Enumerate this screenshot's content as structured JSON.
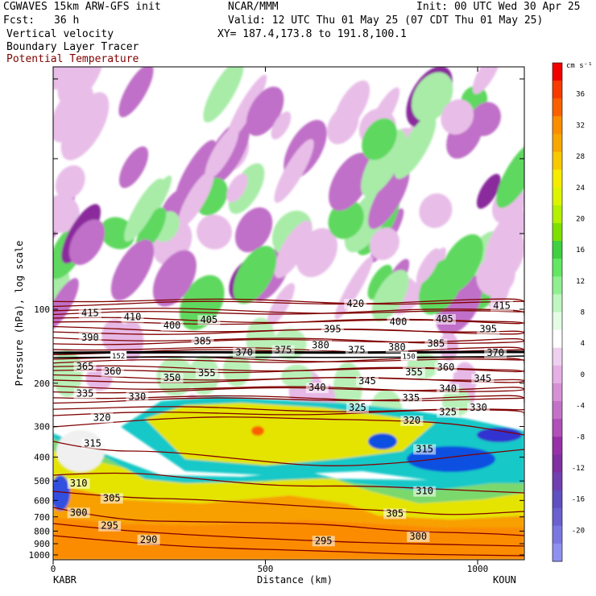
{
  "header": {
    "line1_left": "CGWAVES 15km ARW-GFS init",
    "line1_center": "NCAR/MMM",
    "line1_right": "Init: 00 UTC Wed 30 Apr 25",
    "fcst_label": "Fcst:",
    "fcst_value": "36 h",
    "valid": "Valid: 12 UTC Thu 01 May 25 (07 CDT Thu 01 May 25)",
    "field1": "Vertical velocity",
    "field2": "Boundary Layer Tracer",
    "field3": "Potential Temperature",
    "xy": "XY= 187.4,173.8 to 191.8,100.1"
  },
  "chart_data": {
    "type": "heatmap",
    "xlabel": "Distance (km)",
    "ylabel": "Pressure (hPa), log scale",
    "xlim": [
      0,
      1110
    ],
    "x_ticks": [
      0,
      500,
      1000
    ],
    "y_ticks": [
      100,
      200,
      300,
      400,
      500,
      600,
      700,
      800,
      900,
      1000
    ],
    "y_log_scale": true,
    "left_station": "KABR",
    "right_station": "KOUN",
    "colorbar": {
      "unit": "cm s⁻¹",
      "labels": [
        36,
        32,
        28,
        24,
        20,
        16,
        12,
        8,
        4,
        0,
        -4,
        -8,
        -12,
        -16,
        -20
      ],
      "colors": [
        "#f20000",
        "#f83a00",
        "#fb6000",
        "#fb8e00",
        "#f8a600",
        "#f8c800",
        "#f6ec00",
        "#dcf400",
        "#b4f000",
        "#7ee000",
        "#40d040",
        "#62e862",
        "#90f090",
        "#c0f6c0",
        "#e4fbe4",
        "#ffffff",
        "#f0d0f0",
        "#e6b0e6",
        "#d690d6",
        "#c472c8",
        "#b050b8",
        "#9830a8",
        "#8030a0",
        "#7040b0",
        "#6050c0",
        "#6a60d0",
        "#7a78e0",
        "#9090f0"
      ]
    },
    "theta_labels": [
      {
        "x": 87,
        "p": 106,
        "v": "415"
      },
      {
        "x": 187,
        "p": 110,
        "v": "410"
      },
      {
        "x": 280,
        "p": 119,
        "v": "400"
      },
      {
        "x": 367,
        "p": 113,
        "v": "405"
      },
      {
        "x": 712,
        "p": 97,
        "v": "420"
      },
      {
        "x": 658,
        "p": 123,
        "v": "395"
      },
      {
        "x": 813,
        "p": 115,
        "v": "400"
      },
      {
        "x": 922,
        "p": 112,
        "v": "405"
      },
      {
        "x": 1025,
        "p": 123,
        "v": "395"
      },
      {
        "x": 1057,
        "p": 99,
        "v": "415"
      },
      {
        "x": 87,
        "p": 133,
        "v": "390"
      },
      {
        "x": 352,
        "p": 138,
        "v": "385"
      },
      {
        "x": 450,
        "p": 153,
        "v": "370"
      },
      {
        "x": 542,
        "p": 150,
        "v": "375"
      },
      {
        "x": 630,
        "p": 143,
        "v": "380"
      },
      {
        "x": 715,
        "p": 150,
        "v": "375"
      },
      {
        "x": 810,
        "p": 146,
        "v": "380"
      },
      {
        "x": 902,
        "p": 141,
        "v": "385"
      },
      {
        "x": 1042,
        "p": 154,
        "v": "370"
      },
      {
        "x": 75,
        "p": 175,
        "v": "365"
      },
      {
        "x": 140,
        "p": 183,
        "v": "360"
      },
      {
        "x": 280,
        "p": 194,
        "v": "350"
      },
      {
        "x": 362,
        "p": 186,
        "v": "355"
      },
      {
        "x": 622,
        "p": 213,
        "v": "340"
      },
      {
        "x": 740,
        "p": 200,
        "v": "345"
      },
      {
        "x": 850,
        "p": 184,
        "v": "355"
      },
      {
        "x": 925,
        "p": 176,
        "v": "360"
      },
      {
        "x": 1012,
        "p": 196,
        "v": "345"
      },
      {
        "x": 930,
        "p": 215,
        "v": "340"
      },
      {
        "x": 75,
        "p": 225,
        "v": "335"
      },
      {
        "x": 198,
        "p": 232,
        "v": "330"
      },
      {
        "x": 843,
        "p": 235,
        "v": "335"
      },
      {
        "x": 1002,
        "p": 257,
        "v": "330"
      },
      {
        "x": 115,
        "p": 282,
        "v": "320"
      },
      {
        "x": 717,
        "p": 257,
        "v": "325"
      },
      {
        "x": 845,
        "p": 290,
        "v": "320"
      },
      {
        "x": 930,
        "p": 268,
        "v": "325"
      },
      {
        "x": 93,
        "p": 360,
        "v": "315"
      },
      {
        "x": 875,
        "p": 379,
        "v": "315"
      },
      {
        "x": 60,
        "p": 522,
        "v": "310"
      },
      {
        "x": 875,
        "p": 562,
        "v": "310"
      },
      {
        "x": 138,
        "p": 600,
        "v": "305"
      },
      {
        "x": 805,
        "p": 693,
        "v": "305"
      },
      {
        "x": 60,
        "p": 687,
        "v": "300"
      },
      {
        "x": 860,
        "p": 860,
        "v": "300"
      },
      {
        "x": 133,
        "p": 778,
        "v": "295"
      },
      {
        "x": 637,
        "p": 895,
        "v": "295"
      },
      {
        "x": 225,
        "p": 885,
        "v": "290"
      }
    ],
    "tropopause_labels": [
      {
        "x": 154,
        "p": 156,
        "v": "152"
      },
      {
        "x": 838,
        "p": 157,
        "v": "150"
      }
    ]
  }
}
